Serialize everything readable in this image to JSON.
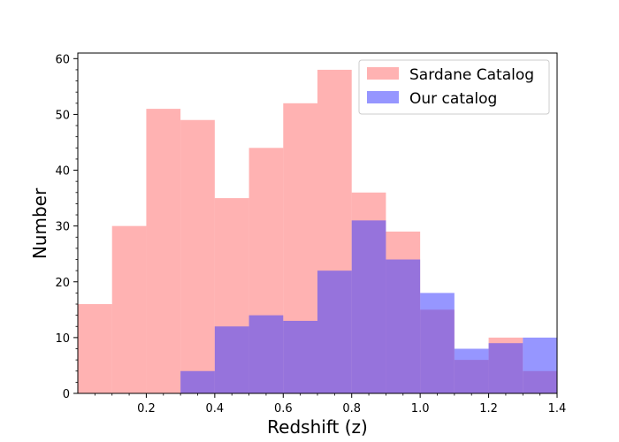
{
  "chart_data": {
    "type": "histogram",
    "title": "",
    "xlabel": "Redshift (z)",
    "ylabel": "Number",
    "xlim": [
      0.0,
      1.4
    ],
    "ylim": [
      0,
      61
    ],
    "x_ticks": [
      0.2,
      0.4,
      0.6,
      0.8,
      1.0,
      1.2,
      1.4
    ],
    "x_tick_labels": [
      "0.2",
      "0.4",
      "0.6",
      "0.8",
      "1.0",
      "1.2",
      "1.4"
    ],
    "y_ticks": [
      0,
      10,
      20,
      30,
      40,
      50,
      60
    ],
    "y_tick_labels": [
      "0",
      "10",
      "20",
      "30",
      "40",
      "50",
      "60"
    ],
    "bin_edges": [
      0.0,
      0.1,
      0.2,
      0.3,
      0.4,
      0.5,
      0.6,
      0.7,
      0.8,
      0.9,
      1.0,
      1.1,
      1.2,
      1.3,
      1.4
    ],
    "series": [
      {
        "name": "Sardane Catalog",
        "color": "#ff7f7f",
        "alpha": 0.6,
        "values": [
          16,
          30,
          51,
          49,
          35,
          44,
          52,
          58,
          36,
          29,
          15,
          6,
          10,
          4
        ]
      },
      {
        "name": "Our catalog",
        "color": "#4040ff",
        "alpha": 0.55,
        "values": [
          0,
          0,
          0,
          4,
          12,
          14,
          13,
          22,
          31,
          24,
          18,
          8,
          9,
          10
        ]
      }
    ],
    "legend_position": "top-right",
    "grid": false
  }
}
